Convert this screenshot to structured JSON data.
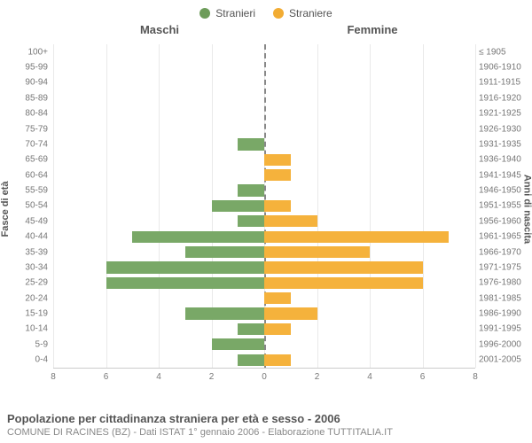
{
  "legend": {
    "male": {
      "label": "Stranieri",
      "color": "#6d9c5a"
    },
    "female": {
      "label": "Straniere",
      "color": "#f2ac33"
    }
  },
  "headers": {
    "left": "Maschi",
    "right": "Femmine"
  },
  "axis": {
    "left_title": "Fasce di età",
    "right_title": "Anni di nascita",
    "xmax": 8,
    "xticks": [
      8,
      6,
      4,
      2,
      0,
      2,
      4,
      6,
      8
    ],
    "grid_color": "#e9e9e9",
    "center_color": "#888888"
  },
  "colors": {
    "male_bar": "#79a867",
    "female_bar": "#f5b23c",
    "text": "#555555",
    "subtext": "#888888",
    "background": "#ffffff"
  },
  "rows": [
    {
      "age": "100+",
      "birth": "≤ 1905",
      "m": 0,
      "f": 0
    },
    {
      "age": "95-99",
      "birth": "1906-1910",
      "m": 0,
      "f": 0
    },
    {
      "age": "90-94",
      "birth": "1911-1915",
      "m": 0,
      "f": 0
    },
    {
      "age": "85-89",
      "birth": "1916-1920",
      "m": 0,
      "f": 0
    },
    {
      "age": "80-84",
      "birth": "1921-1925",
      "m": 0,
      "f": 0
    },
    {
      "age": "75-79",
      "birth": "1926-1930",
      "m": 0,
      "f": 0
    },
    {
      "age": "70-74",
      "birth": "1931-1935",
      "m": 1,
      "f": 0
    },
    {
      "age": "65-69",
      "birth": "1936-1940",
      "m": 0,
      "f": 1
    },
    {
      "age": "60-64",
      "birth": "1941-1945",
      "m": 0,
      "f": 1
    },
    {
      "age": "55-59",
      "birth": "1946-1950",
      "m": 1,
      "f": 0
    },
    {
      "age": "50-54",
      "birth": "1951-1955",
      "m": 2,
      "f": 1
    },
    {
      "age": "45-49",
      "birth": "1956-1960",
      "m": 1,
      "f": 2
    },
    {
      "age": "40-44",
      "birth": "1961-1965",
      "m": 5,
      "f": 7
    },
    {
      "age": "35-39",
      "birth": "1966-1970",
      "m": 3,
      "f": 4
    },
    {
      "age": "30-34",
      "birth": "1971-1975",
      "m": 6,
      "f": 6
    },
    {
      "age": "25-29",
      "birth": "1976-1980",
      "m": 6,
      "f": 6
    },
    {
      "age": "20-24",
      "birth": "1981-1985",
      "m": 0,
      "f": 1
    },
    {
      "age": "15-19",
      "birth": "1986-1990",
      "m": 3,
      "f": 2
    },
    {
      "age": "10-14",
      "birth": "1991-1995",
      "m": 1,
      "f": 1
    },
    {
      "age": "5-9",
      "birth": "1996-2000",
      "m": 2,
      "f": 0
    },
    {
      "age": "0-4",
      "birth": "2001-2005",
      "m": 1,
      "f": 1
    }
  ],
  "footer": {
    "title": "Popolazione per cittadinanza straniera per età e sesso - 2006",
    "subtitle": "COMUNE DI RACINES (BZ) - Dati ISTAT 1° gennaio 2006 - Elaborazione TUTTITALIA.IT"
  }
}
